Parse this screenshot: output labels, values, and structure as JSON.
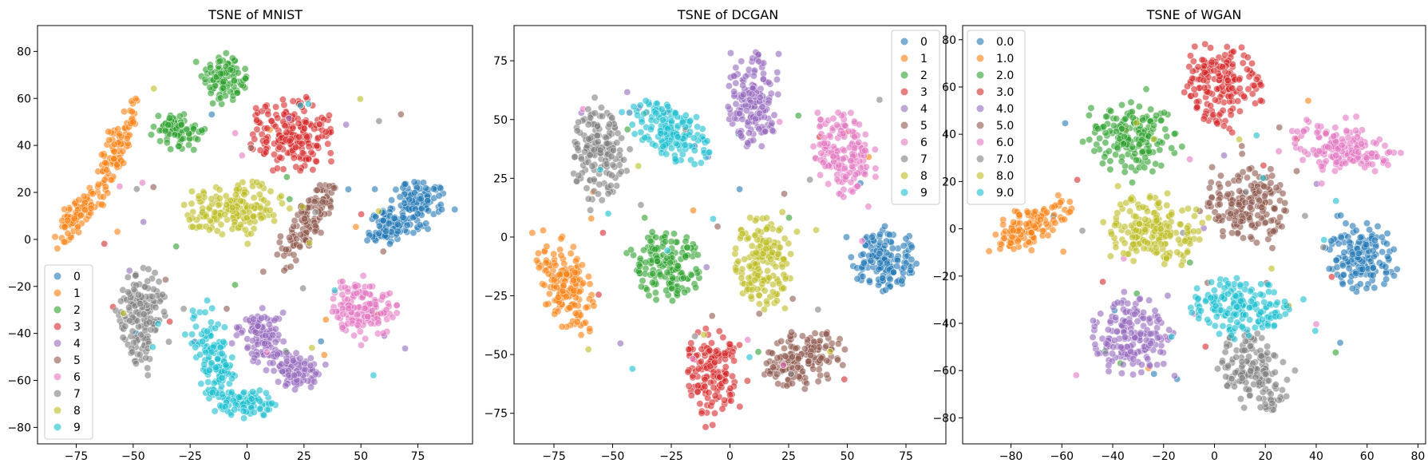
{
  "colors": {
    "class_palette": [
      "#1f77b4",
      "#ff7f0e",
      "#2ca02c",
      "#d62728",
      "#9467bd",
      "#8c564b",
      "#e377c2",
      "#7f7f7f",
      "#bcbd22",
      "#17becf"
    ]
  },
  "chart_data": [
    {
      "type": "scatter",
      "title": "TSNE of MNIST",
      "xlabel": "",
      "ylabel": "",
      "xlim": [
        -92,
        99
      ],
      "ylim": [
        -87,
        91
      ],
      "xticks": [
        -75,
        -50,
        -25,
        0,
        25,
        50,
        75
      ],
      "yticks": [
        -80,
        -60,
        -40,
        -20,
        0,
        20,
        40,
        60,
        80
      ],
      "grid": false,
      "legend_position": "lower-left",
      "legend": [
        "0",
        "1",
        "2",
        "3",
        "4",
        "5",
        "6",
        "7",
        "8",
        "9"
      ],
      "series": [
        {
          "name": "0",
          "clusters": [
            {
              "cx": 74,
              "cy": 14,
              "rx": 13,
              "ry": 11,
              "rot": 25
            },
            {
              "cx": 61,
              "cy": 5,
              "rx": 9,
              "ry": 7,
              "rot": 15
            }
          ]
        },
        {
          "name": "1",
          "clusters": [
            {
              "cx": -58,
              "cy": 36,
              "rx": 24,
              "ry": 5,
              "rot": 70
            },
            {
              "cx": -75,
              "cy": 10,
              "rx": 14,
              "ry": 5,
              "rot": 55
            }
          ]
        },
        {
          "name": "2",
          "clusters": [
            {
              "cx": -10,
              "cy": 68,
              "rx": 10,
              "ry": 11,
              "rot": 0
            },
            {
              "cx": -30,
              "cy": 46,
              "rx": 10,
              "ry": 8,
              "rot": 0
            }
          ]
        },
        {
          "name": "3",
          "clusters": [
            {
              "cx": 20,
              "cy": 44,
              "rx": 18,
              "ry": 16,
              "rot": 0
            }
          ]
        },
        {
          "name": "4",
          "clusters": [
            {
              "cx": 6,
              "cy": -40,
              "rx": 11,
              "ry": 11,
              "rot": 0
            },
            {
              "cx": 20,
              "cy": -55,
              "rx": 12,
              "ry": 9,
              "rot": -20
            }
          ]
        },
        {
          "name": "5",
          "clusters": [
            {
              "cx": 25,
              "cy": 5,
              "rx": 22,
              "ry": 7,
              "rot": 55
            }
          ]
        },
        {
          "name": "6",
          "clusters": [
            {
              "cx": 52,
              "cy": -30,
              "rx": 16,
              "ry": 12,
              "rot": -25
            }
          ]
        },
        {
          "name": "7",
          "clusters": [
            {
              "cx": -46,
              "cy": -32,
              "rx": 10,
              "ry": 20,
              "rot": 0
            }
          ]
        },
        {
          "name": "8",
          "clusters": [
            {
              "cx": -6,
              "cy": 13,
              "rx": 22,
              "ry": 11,
              "rot": 5
            }
          ]
        },
        {
          "name": "9",
          "clusters": [
            {
              "cx": -15,
              "cy": -52,
              "rx": 8,
              "ry": 22,
              "rot": 15
            },
            {
              "cx": 0,
              "cy": -70,
              "rx": 12,
              "ry": 6,
              "rot": 0
            }
          ]
        }
      ]
    },
    {
      "type": "scatter",
      "title": "TSNE of DCGAN",
      "xlabel": "",
      "ylabel": "",
      "xlim": [
        -92,
        92
      ],
      "ylim": [
        -88,
        90
      ],
      "xticks": [
        -75,
        -50,
        -25,
        0,
        25,
        50,
        75
      ],
      "yticks": [
        -75,
        -50,
        -25,
        0,
        25,
        50,
        75
      ],
      "grid": false,
      "legend_position": "upper-right",
      "legend": [
        "0",
        "1",
        "2",
        "3",
        "4",
        "5",
        "6",
        "7",
        "8",
        "9"
      ],
      "series": [
        {
          "name": "0",
          "clusters": [
            {
              "cx": 66,
              "cy": -10,
              "rx": 14,
              "ry": 13,
              "rot": 0
            }
          ]
        },
        {
          "name": "1",
          "clusters": [
            {
              "cx": -70,
              "cy": -20,
              "rx": 10,
              "ry": 22,
              "rot": 20
            }
          ]
        },
        {
          "name": "2",
          "clusters": [
            {
              "cx": -26,
              "cy": -13,
              "rx": 14,
              "ry": 15,
              "rot": 0
            }
          ]
        },
        {
          "name": "3",
          "clusters": [
            {
              "cx": -8,
              "cy": -57,
              "rx": 11,
              "ry": 18,
              "rot": 0
            }
          ]
        },
        {
          "name": "4",
          "clusters": [
            {
              "cx": 10,
              "cy": 58,
              "rx": 11,
              "ry": 20,
              "rot": 0
            }
          ]
        },
        {
          "name": "5",
          "clusters": [
            {
              "cx": 30,
              "cy": -52,
              "rx": 19,
              "ry": 11,
              "rot": 20
            }
          ]
        },
        {
          "name": "6",
          "clusters": [
            {
              "cx": 48,
              "cy": 35,
              "rx": 12,
              "ry": 19,
              "rot": 10
            }
          ]
        },
        {
          "name": "7",
          "clusters": [
            {
              "cx": -56,
              "cy": 36,
              "rx": 11,
              "ry": 20,
              "rot": 0
            }
          ]
        },
        {
          "name": "8",
          "clusters": [
            {
              "cx": 14,
              "cy": -10,
              "rx": 12,
              "ry": 20,
              "rot": 0
            }
          ]
        },
        {
          "name": "9",
          "clusters": [
            {
              "cx": -25,
              "cy": 45,
              "rx": 20,
              "ry": 10,
              "rot": -30
            }
          ]
        }
      ]
    },
    {
      "type": "scatter",
      "title": "TSNE of WGAN",
      "xlabel": "",
      "ylabel": "",
      "xlim": [
        -99,
        83
      ],
      "ylim": [
        -91,
        86
      ],
      "xticks": [
        -80,
        -60,
        -40,
        -20,
        0,
        20,
        40,
        60,
        80
      ],
      "yticks": [
        -80,
        -60,
        -40,
        -20,
        0,
        20,
        40,
        60,
        80
      ],
      "grid": false,
      "legend_position": "upper-left",
      "legend": [
        "0.0",
        "1.0",
        "2.0",
        "3.0",
        "4.0",
        "5.0",
        "6.0",
        "7.0",
        "8.0",
        "9.0"
      ],
      "series": [
        {
          "name": "0.0",
          "clusters": [
            {
              "cx": 57,
              "cy": -12,
              "rx": 13,
              "ry": 16,
              "rot": 0
            }
          ]
        },
        {
          "name": "1.0",
          "clusters": [
            {
              "cx": -72,
              "cy": 2,
              "rx": 18,
              "ry": 8,
              "rot": 30
            }
          ]
        },
        {
          "name": "2.0",
          "clusters": [
            {
              "cx": -32,
              "cy": 38,
              "rx": 17,
              "ry": 14,
              "rot": 0
            }
          ]
        },
        {
          "name": "3.0",
          "clusters": [
            {
              "cx": 2,
              "cy": 62,
              "rx": 15,
              "ry": 17,
              "rot": 0
            }
          ]
        },
        {
          "name": "4.0",
          "clusters": [
            {
              "cx": -33,
              "cy": -45,
              "rx": 15,
              "ry": 16,
              "rot": 0
            }
          ]
        },
        {
          "name": "5.0",
          "clusters": [
            {
              "cx": 13,
              "cy": 10,
              "rx": 16,
              "ry": 16,
              "rot": 0
            }
          ]
        },
        {
          "name": "6.0",
          "clusters": [
            {
              "cx": 50,
              "cy": 34,
              "rx": 22,
              "ry": 10,
              "rot": -10
            }
          ]
        },
        {
          "name": "7.0",
          "clusters": [
            {
              "cx": 15,
              "cy": -60,
              "rx": 12,
              "ry": 18,
              "rot": 30
            }
          ]
        },
        {
          "name": "8.0",
          "clusters": [
            {
              "cx": -23,
              "cy": 0,
              "rx": 18,
              "ry": 15,
              "rot": 0
            }
          ]
        },
        {
          "name": "9.0",
          "clusters": [
            {
              "cx": 10,
              "cy": -33,
              "rx": 19,
              "ry": 12,
              "rot": 0
            }
          ]
        }
      ]
    }
  ]
}
